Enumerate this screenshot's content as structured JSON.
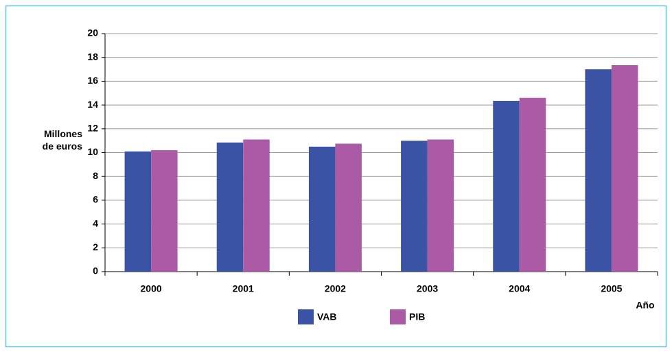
{
  "chart_data": {
    "type": "bar",
    "y_label": "Millones\nde euros",
    "x_label": "Año",
    "categories": [
      "2000",
      "2001",
      "2002",
      "2003",
      "2004",
      "2005"
    ],
    "series": [
      {
        "name": "VAB",
        "color": "#3a53a4",
        "values": [
          10.1,
          10.85,
          10.5,
          11.0,
          14.35,
          17.0
        ]
      },
      {
        "name": "PIB",
        "color": "#ab5ba6",
        "values": [
          10.2,
          11.1,
          10.75,
          11.1,
          14.6,
          17.35
        ]
      }
    ],
    "ylim": [
      0,
      20
    ],
    "yticks": [
      0,
      2,
      4,
      6,
      8,
      10,
      12,
      14,
      16,
      18,
      20
    ],
    "grid": true,
    "legend": "bottom"
  }
}
